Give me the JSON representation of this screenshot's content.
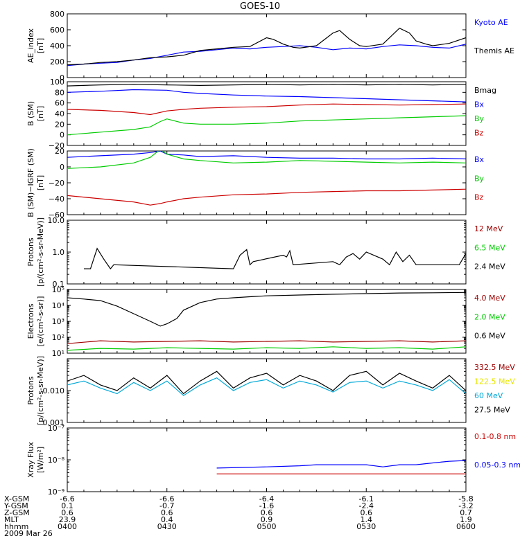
{
  "title": "GOES-10",
  "colors": {
    "black": "#000000",
    "blue": "#0000ff",
    "green": "#00cc00",
    "red": "#cc0000",
    "darkred": "#a00000",
    "yellow": "#e6e600",
    "cyan": "#00a8d8"
  },
  "ephemeris": {
    "row_labels": [
      "X-GSM",
      "Y-GSM",
      "Z-GSM",
      "MLT",
      "hhmm"
    ],
    "date": "2009 Mar 26",
    "columns": [
      [
        "-6.6",
        "0.1",
        "0.6",
        "23.9",
        "0400"
      ],
      [
        "-6.6",
        "-0.7",
        "0.6",
        "0.4",
        "0430"
      ],
      [
        "-6.4",
        "-1.6",
        "0.6",
        "0.9",
        "0500"
      ],
      [
        "-6.1",
        "-2.4",
        "0.6",
        "1.4",
        "0530"
      ],
      [
        "-5.8",
        "-3.2",
        "0.7",
        "1.9",
        "0600"
      ]
    ]
  },
  "chart_data": [
    {
      "type": "line",
      "ylabel": [
        "AE_index",
        "[nT]"
      ],
      "ylim": [
        0,
        800
      ],
      "ticks": [
        "0",
        "200",
        "400",
        "600",
        "800"
      ],
      "series": [
        {
          "name": "Kyoto AE",
          "color": "#0000ff",
          "x": [
            0,
            5,
            10,
            15,
            20,
            25,
            30,
            35,
            40,
            45,
            50,
            55,
            60,
            65,
            70,
            75,
            80,
            85,
            90,
            95,
            100,
            105,
            110,
            115,
            120
          ],
          "y": [
            150,
            170,
            180,
            190,
            220,
            240,
            280,
            320,
            330,
            350,
            370,
            360,
            380,
            390,
            400,
            380,
            350,
            370,
            360,
            390,
            410,
            400,
            380,
            370,
            420
          ]
        },
        {
          "name": "Themis AE",
          "color": "#000000",
          "x": [
            0,
            5,
            10,
            15,
            20,
            25,
            30,
            35,
            40,
            45,
            50,
            55,
            60,
            62,
            65,
            68,
            70,
            75,
            80,
            82,
            85,
            88,
            90,
            95,
            100,
            103,
            105,
            108,
            110,
            115,
            120
          ],
          "y": [
            160,
            170,
            190,
            200,
            220,
            250,
            260,
            280,
            340,
            360,
            380,
            390,
            500,
            480,
            420,
            380,
            370,
            400,
            560,
            590,
            480,
            400,
            390,
            420,
            620,
            560,
            460,
            420,
            400,
            430,
            500
          ]
        }
      ]
    },
    {
      "type": "line",
      "ylabel": [
        "B (SM)",
        "[nT]"
      ],
      "ylim": [
        -20,
        100
      ],
      "ticks": [
        "−20",
        "0",
        "20",
        "40",
        "60",
        "80",
        "100"
      ],
      "series": [
        {
          "name": "Bmag",
          "color": "#000000",
          "x": [
            0,
            10,
            20,
            30,
            40,
            50,
            60,
            70,
            80,
            90,
            100,
            110,
            120
          ],
          "y": [
            92,
            94,
            95,
            94,
            93,
            94,
            95,
            94,
            95,
            94,
            95,
            94,
            95
          ]
        },
        {
          "name": "Bx",
          "color": "#0000ff",
          "x": [
            0,
            10,
            20,
            30,
            35,
            40,
            50,
            60,
            70,
            80,
            90,
            100,
            110,
            120
          ],
          "y": [
            80,
            82,
            85,
            84,
            80,
            78,
            75,
            73,
            72,
            70,
            68,
            66,
            64,
            62
          ]
        },
        {
          "name": "By",
          "color": "#00cc00",
          "x": [
            0,
            10,
            20,
            25,
            28,
            30,
            35,
            40,
            50,
            60,
            70,
            80,
            90,
            100,
            110,
            120
          ],
          "y": [
            0,
            5,
            10,
            15,
            25,
            30,
            22,
            20,
            20,
            22,
            26,
            28,
            30,
            32,
            34,
            36
          ]
        },
        {
          "name": "Bz",
          "color": "#cc0000",
          "x": [
            0,
            10,
            20,
            25,
            30,
            35,
            40,
            50,
            60,
            70,
            80,
            90,
            100,
            110,
            120
          ],
          "y": [
            48,
            46,
            42,
            38,
            45,
            48,
            50,
            52,
            53,
            56,
            58,
            57,
            56,
            57,
            58
          ]
        }
      ]
    },
    {
      "type": "line",
      "ylabel": [
        "B (SM)−IGRF (SM)",
        "[nT]"
      ],
      "ylim": [
        -60,
        20
      ],
      "ticks": [
        "−60",
        "−40",
        "−20",
        "0",
        "20"
      ],
      "series": [
        {
          "name": "Bx",
          "color": "#0000ff",
          "x": [
            0,
            10,
            20,
            25,
            28,
            30,
            35,
            40,
            50,
            60,
            70,
            80,
            90,
            100,
            110,
            120
          ],
          "y": [
            12,
            14,
            16,
            18,
            20,
            16,
            15,
            13,
            14,
            12,
            11,
            11,
            10,
            10,
            11,
            10
          ]
        },
        {
          "name": "By",
          "color": "#00cc00",
          "x": [
            0,
            10,
            20,
            25,
            28,
            30,
            35,
            40,
            50,
            60,
            70,
            80,
            90,
            100,
            110,
            120
          ],
          "y": [
            -2,
            0,
            5,
            12,
            22,
            16,
            10,
            8,
            5,
            6,
            8,
            7,
            6,
            5,
            6,
            5
          ]
        },
        {
          "name": "Bz",
          "color": "#cc0000",
          "x": [
            0,
            10,
            20,
            25,
            28,
            30,
            35,
            40,
            50,
            60,
            70,
            80,
            90,
            100,
            110,
            120
          ],
          "y": [
            -36,
            -40,
            -44,
            -48,
            -46,
            -44,
            -40,
            -38,
            -35,
            -34,
            -32,
            -31,
            -30,
            -30,
            -29,
            -28
          ]
        }
      ]
    },
    {
      "type": "line",
      "log": true,
      "ylabel": [
        "Protons",
        "[p/(cm²-s-sr-MeV)]"
      ],
      "ylim": [
        0.1,
        10
      ],
      "ticks": [
        {
          "v": 0.1,
          "t": "0.1"
        },
        {
          "v": 1,
          "t": "1.0"
        },
        {
          "v": 10,
          "t": "10.0"
        }
      ],
      "series": [
        {
          "name": "12 MeV",
          "color": "#a00000",
          "x": [],
          "y": []
        },
        {
          "name": "6.5 MeV",
          "color": "#00cc00",
          "x": [],
          "y": []
        },
        {
          "name": "2.4 MeV",
          "color": "#000000",
          "x": [
            5,
            7,
            9,
            11,
            13,
            14,
            50,
            52,
            54,
            55,
            56,
            65,
            66,
            67,
            68,
            80,
            82,
            84,
            86,
            88,
            90,
            95,
            97,
            99,
            101,
            103,
            105,
            118,
            120
          ],
          "y": [
            0.3,
            0.3,
            1.3,
            0.6,
            0.3,
            0.4,
            0.3,
            0.8,
            1.2,
            0.4,
            0.5,
            0.8,
            0.7,
            1.1,
            0.4,
            0.5,
            0.4,
            0.7,
            0.9,
            0.6,
            1.0,
            0.6,
            0.4,
            1.0,
            0.5,
            0.8,
            0.4,
            0.4,
            0.9
          ]
        }
      ]
    },
    {
      "type": "line",
      "log": true,
      "ylabel": [
        "Electrons",
        "[e/(cm²-s-sr)]"
      ],
      "ylim": [
        10,
        100000
      ],
      "ticks": [
        {
          "v": 10,
          "t": "10¹"
        },
        {
          "v": 100,
          "t": "10²"
        },
        {
          "v": 1000,
          "t": "10³"
        },
        {
          "v": 10000,
          "t": "10⁴"
        },
        {
          "v": 100000,
          "t": "10⁵"
        }
      ],
      "series": [
        {
          "name": "4.0 MeV",
          "color": "#a00000",
          "x": [
            0,
            10,
            20,
            30,
            40,
            50,
            60,
            70,
            80,
            90,
            100,
            110,
            120
          ],
          "y": [
            40,
            60,
            50,
            55,
            60,
            50,
            55,
            60,
            50,
            55,
            60,
            50,
            60
          ]
        },
        {
          "name": "2.0 MeV",
          "color": "#00cc00",
          "x": [
            0,
            10,
            20,
            30,
            40,
            50,
            60,
            70,
            80,
            90,
            100,
            110,
            120
          ],
          "y": [
            15,
            20,
            18,
            22,
            20,
            18,
            22,
            20,
            25,
            20,
            22,
            18,
            25
          ]
        },
        {
          "name": "0.6 MeV",
          "color": "#000000",
          "x": [
            0,
            5,
            10,
            15,
            20,
            25,
            28,
            30,
            33,
            35,
            40,
            45,
            50,
            55,
            60,
            70,
            80,
            90,
            100,
            110,
            120
          ],
          "y": [
            30000,
            25000,
            20000,
            9000,
            3000,
            1000,
            500,
            700,
            1500,
            5000,
            15000,
            25000,
            30000,
            35000,
            40000,
            45000,
            50000,
            55000,
            60000,
            62000,
            65000
          ]
        }
      ]
    },
    {
      "type": "line",
      "log": true,
      "ylabel": [
        "Protons",
        "[p/(cm²-s-sr-MeV)]"
      ],
      "ylim": [
        0.001,
        0.1
      ],
      "ticks": [
        {
          "v": 0.001,
          "t": "0.001"
        },
        {
          "v": 0.01,
          "t": "0.010"
        }
      ],
      "series": [
        {
          "name": "332.5 MeV",
          "color": "#a00000",
          "x": [],
          "y": []
        },
        {
          "name": "122.5 MeV",
          "color": "#e6e600",
          "x": [],
          "y": []
        },
        {
          "name": "60 MeV",
          "color": "#00a8d8",
          "x": [
            0,
            5,
            10,
            15,
            20,
            25,
            30,
            35,
            40,
            45,
            50,
            55,
            60,
            65,
            70,
            75,
            80,
            85,
            90,
            95,
            100,
            105,
            110,
            115,
            120
          ],
          "y": [
            0.015,
            0.02,
            0.012,
            0.008,
            0.018,
            0.01,
            0.02,
            0.007,
            0.015,
            0.025,
            0.01,
            0.018,
            0.022,
            0.012,
            0.02,
            0.015,
            0.009,
            0.018,
            0.02,
            0.012,
            0.02,
            0.015,
            0.01,
            0.022,
            0.008
          ]
        },
        {
          "name": "27.5 MeV",
          "color": "#000000",
          "x": [
            0,
            5,
            10,
            15,
            20,
            25,
            30,
            35,
            40,
            45,
            50,
            55,
            60,
            65,
            70,
            75,
            80,
            85,
            90,
            95,
            100,
            105,
            110,
            115,
            120
          ],
          "y": [
            0.02,
            0.03,
            0.015,
            0.01,
            0.025,
            0.012,
            0.03,
            0.008,
            0.02,
            0.04,
            0.012,
            0.025,
            0.035,
            0.015,
            0.03,
            0.02,
            0.01,
            0.03,
            0.04,
            0.015,
            0.035,
            0.02,
            0.012,
            0.03,
            0.01
          ]
        }
      ]
    },
    {
      "type": "line",
      "log": true,
      "ylabel": [
        "Xray Flux",
        "[W/m²]"
      ],
      "ylim": [
        1e-09,
        1e-07
      ],
      "ticks": [
        {
          "v": 1e-09,
          "t": "10⁻⁹"
        },
        {
          "v": 1e-08,
          "t": "10⁻⁸"
        },
        {
          "v": 1e-07,
          "t": "10⁻⁷"
        }
      ],
      "series": [
        {
          "name": "0.1-0.8 nm",
          "color": "#cc0000",
          "x": [
            45,
            120
          ],
          "y": [
            3.6e-09,
            3.6e-09
          ]
        },
        {
          "name": "0.05-0.3 nm",
          "color": "#0000ff",
          "x": [
            45,
            60,
            70,
            75,
            80,
            90,
            95,
            100,
            105,
            110,
            115,
            120
          ],
          "y": [
            5.5e-09,
            6e-09,
            6.5e-09,
            7e-09,
            7e-09,
            7e-09,
            6e-09,
            7e-09,
            7e-09,
            8e-09,
            9e-09,
            9.5e-09
          ]
        }
      ]
    }
  ]
}
